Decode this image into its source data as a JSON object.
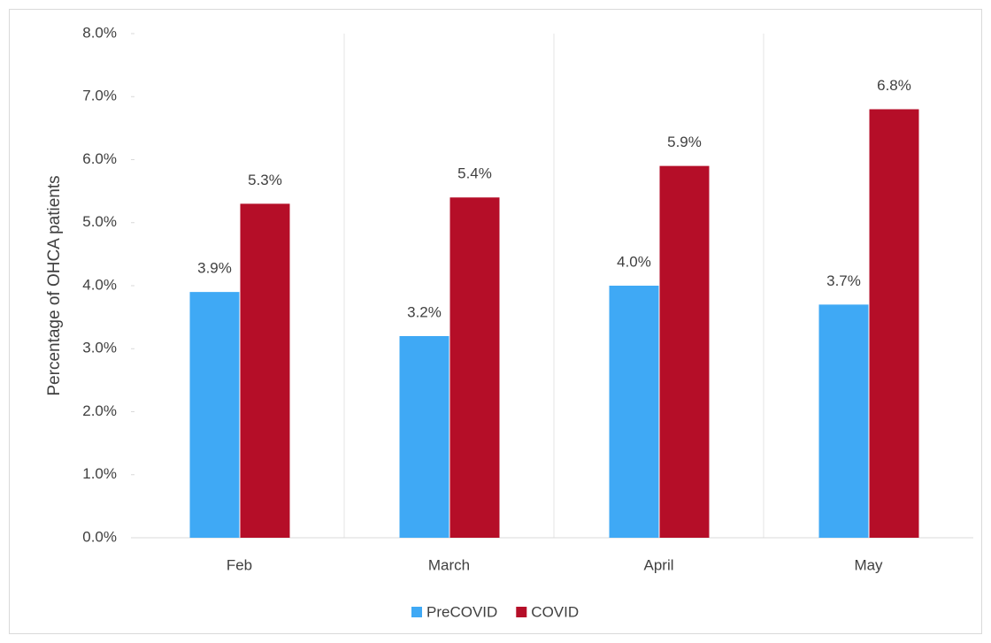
{
  "chart_data": {
    "type": "bar",
    "y_label": "Percentage of OHCA patients",
    "categories": [
      "Feb",
      "March",
      "April",
      "May"
    ],
    "series": [
      {
        "name": "PreCOVID",
        "color": "#3FA9F5",
        "values": [
          3.9,
          3.2,
          4.0,
          3.7
        ],
        "value_labels": [
          "3.9%",
          "3.2%",
          "4.0%",
          "3.7%"
        ]
      },
      {
        "name": "COVID",
        "color": "#B50E28",
        "values": [
          5.3,
          5.4,
          5.9,
          6.8
        ],
        "value_labels": [
          "5.3%",
          "5.4%",
          "5.9%",
          "6.8%"
        ]
      }
    ],
    "ylim": [
      0,
      8
    ],
    "yticks": [
      {
        "value": 0,
        "label": "0.0%"
      },
      {
        "value": 1,
        "label": "1.0%"
      },
      {
        "value": 2,
        "label": "2.0%"
      },
      {
        "value": 3,
        "label": "3.0%"
      },
      {
        "value": 4,
        "label": "4.0%"
      },
      {
        "value": 5,
        "label": "5.0%"
      },
      {
        "value": 6,
        "label": "6.0%"
      },
      {
        "value": 7,
        "label": "7.0%"
      },
      {
        "value": 8,
        "label": "8.0%"
      }
    ],
    "legend": "bottom"
  }
}
